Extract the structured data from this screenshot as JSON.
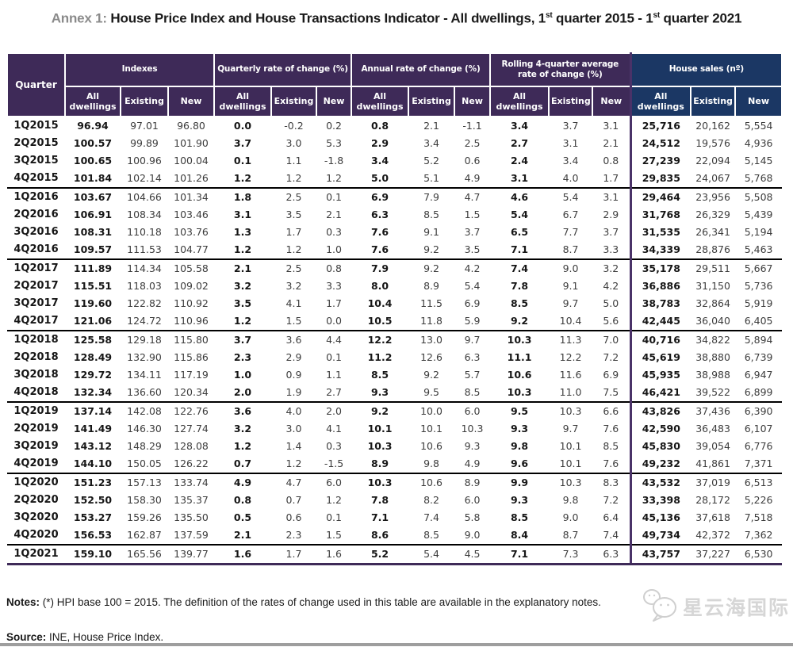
{
  "title": {
    "prefix": "Annex 1:",
    "part1": " House Price Index and House Transactions Indicator - All dwellings, 1",
    "sup1": "st",
    "part2": " quarter 2015 - 1",
    "sup2": "st",
    "part3": " quarter 2021"
  },
  "colors": {
    "header_purple": "#3e2a58",
    "header_navy": "#1b3764",
    "divider_purple": "#4a3268",
    "year_separator": "#000000",
    "table_bottom_border": "#3e2a58",
    "watermark_gray": "#d6d6d6",
    "bottom_rule_gray": "#9e9e9e"
  },
  "table": {
    "quarter_header": "Quarter",
    "groups": [
      {
        "label": "Indexes",
        "theme": "purple"
      },
      {
        "label": "Quarterly rate of change (%)",
        "theme": "purple"
      },
      {
        "label": "Annual rate of change (%)",
        "theme": "purple"
      },
      {
        "label": "Rolling 4-quarter average rate of change (%)",
        "theme": "purple"
      },
      {
        "label": "House sales (nº)",
        "theme": "navy"
      }
    ],
    "subheaders": [
      "All dwellings",
      "Existing",
      "New"
    ],
    "rows": [
      {
        "quarter": "1Q2015",
        "values": [
          "96.94",
          "97.01",
          "96.80",
          "0.0",
          "-0.2",
          "0.2",
          "0.8",
          "2.1",
          "-1.1",
          "3.4",
          "3.7",
          "3.1",
          "25,716",
          "20,162",
          "5,554"
        ]
      },
      {
        "quarter": "2Q2015",
        "values": [
          "100.57",
          "99.89",
          "101.90",
          "3.7",
          "3.0",
          "5.3",
          "2.9",
          "3.4",
          "2.5",
          "2.7",
          "3.1",
          "2.1",
          "24,512",
          "19,576",
          "4,936"
        ]
      },
      {
        "quarter": "3Q2015",
        "values": [
          "100.65",
          "100.96",
          "100.04",
          "0.1",
          "1.1",
          "-1.8",
          "3.4",
          "5.2",
          "0.6",
          "2.4",
          "3.4",
          "0.8",
          "27,239",
          "22,094",
          "5,145"
        ]
      },
      {
        "quarter": "4Q2015",
        "values": [
          "101.84",
          "102.14",
          "101.26",
          "1.2",
          "1.2",
          "1.2",
          "5.0",
          "5.1",
          "4.9",
          "3.1",
          "4.0",
          "1.7",
          "29,835",
          "24,067",
          "5,768"
        ]
      },
      {
        "quarter": "1Q2016",
        "values": [
          "103.67",
          "104.66",
          "101.34",
          "1.8",
          "2.5",
          "0.1",
          "6.9",
          "7.9",
          "4.7",
          "4.6",
          "5.4",
          "3.1",
          "29,464",
          "23,956",
          "5,508"
        ]
      },
      {
        "quarter": "2Q2016",
        "values": [
          "106.91",
          "108.34",
          "103.46",
          "3.1",
          "3.5",
          "2.1",
          "6.3",
          "8.5",
          "1.5",
          "5.4",
          "6.7",
          "2.9",
          "31,768",
          "26,329",
          "5,439"
        ]
      },
      {
        "quarter": "3Q2016",
        "values": [
          "108.31",
          "110.18",
          "103.76",
          "1.3",
          "1.7",
          "0.3",
          "7.6",
          "9.1",
          "3.7",
          "6.5",
          "7.7",
          "3.7",
          "31,535",
          "26,341",
          "5,194"
        ]
      },
      {
        "quarter": "4Q2016",
        "values": [
          "109.57",
          "111.53",
          "104.77",
          "1.2",
          "1.2",
          "1.0",
          "7.6",
          "9.2",
          "3.5",
          "7.1",
          "8.7",
          "3.3",
          "34,339",
          "28,876",
          "5,463"
        ]
      },
      {
        "quarter": "1Q2017",
        "values": [
          "111.89",
          "114.34",
          "105.58",
          "2.1",
          "2.5",
          "0.8",
          "7.9",
          "9.2",
          "4.2",
          "7.4",
          "9.0",
          "3.2",
          "35,178",
          "29,511",
          "5,667"
        ]
      },
      {
        "quarter": "2Q2017",
        "values": [
          "115.51",
          "118.03",
          "109.02",
          "3.2",
          "3.2",
          "3.3",
          "8.0",
          "8.9",
          "5.4",
          "7.8",
          "9.1",
          "4.2",
          "36,886",
          "31,150",
          "5,736"
        ]
      },
      {
        "quarter": "3Q2017",
        "values": [
          "119.60",
          "122.82",
          "110.92",
          "3.5",
          "4.1",
          "1.7",
          "10.4",
          "11.5",
          "6.9",
          "8.5",
          "9.7",
          "5.0",
          "38,783",
          "32,864",
          "5,919"
        ]
      },
      {
        "quarter": "4Q2017",
        "values": [
          "121.06",
          "124.72",
          "110.96",
          "1.2",
          "1.5",
          "0.0",
          "10.5",
          "11.8",
          "5.9",
          "9.2",
          "10.4",
          "5.6",
          "42,445",
          "36,040",
          "6,405"
        ]
      },
      {
        "quarter": "1Q2018",
        "values": [
          "125.58",
          "129.18",
          "115.80",
          "3.7",
          "3.6",
          "4.4",
          "12.2",
          "13.0",
          "9.7",
          "10.3",
          "11.3",
          "7.0",
          "40,716",
          "34,822",
          "5,894"
        ]
      },
      {
        "quarter": "2Q2018",
        "values": [
          "128.49",
          "132.90",
          "115.86",
          "2.3",
          "2.9",
          "0.1",
          "11.2",
          "12.6",
          "6.3",
          "11.1",
          "12.2",
          "7.2",
          "45,619",
          "38,880",
          "6,739"
        ]
      },
      {
        "quarter": "3Q2018",
        "values": [
          "129.72",
          "134.11",
          "117.19",
          "1.0",
          "0.9",
          "1.1",
          "8.5",
          "9.2",
          "5.7",
          "10.6",
          "11.6",
          "6.9",
          "45,935",
          "38,988",
          "6,947"
        ]
      },
      {
        "quarter": "4Q2018",
        "values": [
          "132.34",
          "136.60",
          "120.34",
          "2.0",
          "1.9",
          "2.7",
          "9.3",
          "9.5",
          "8.5",
          "10.3",
          "11.0",
          "7.5",
          "46,421",
          "39,522",
          "6,899"
        ]
      },
      {
        "quarter": "1Q2019",
        "values": [
          "137.14",
          "142.08",
          "122.76",
          "3.6",
          "4.0",
          "2.0",
          "9.2",
          "10.0",
          "6.0",
          "9.5",
          "10.3",
          "6.6",
          "43,826",
          "37,436",
          "6,390"
        ]
      },
      {
        "quarter": "2Q2019",
        "values": [
          "141.49",
          "146.30",
          "127.74",
          "3.2",
          "3.0",
          "4.1",
          "10.1",
          "10.1",
          "10.3",
          "9.3",
          "9.7",
          "7.6",
          "42,590",
          "36,483",
          "6,107"
        ]
      },
      {
        "quarter": "3Q2019",
        "values": [
          "143.12",
          "148.29",
          "128.08",
          "1.2",
          "1.4",
          "0.3",
          "10.3",
          "10.6",
          "9.3",
          "9.8",
          "10.1",
          "8.5",
          "45,830",
          "39,054",
          "6,776"
        ]
      },
      {
        "quarter": "4Q2019",
        "values": [
          "144.10",
          "150.05",
          "126.22",
          "0.7",
          "1.2",
          "-1.5",
          "8.9",
          "9.8",
          "4.9",
          "9.6",
          "10.1",
          "7.6",
          "49,232",
          "41,861",
          "7,371"
        ]
      },
      {
        "quarter": "1Q2020",
        "values": [
          "151.23",
          "157.13",
          "133.74",
          "4.9",
          "4.7",
          "6.0",
          "10.3",
          "10.6",
          "8.9",
          "9.9",
          "10.3",
          "8.3",
          "43,532",
          "37,019",
          "6,513"
        ]
      },
      {
        "quarter": "2Q2020",
        "values": [
          "152.50",
          "158.30",
          "135.37",
          "0.8",
          "0.7",
          "1.2",
          "7.8",
          "8.2",
          "6.0",
          "9.3",
          "9.8",
          "7.2",
          "33,398",
          "28,172",
          "5,226"
        ]
      },
      {
        "quarter": "3Q2020",
        "values": [
          "153.27",
          "159.26",
          "135.50",
          "0.5",
          "0.6",
          "0.1",
          "7.1",
          "7.4",
          "5.8",
          "8.5",
          "9.0",
          "6.4",
          "45,136",
          "37,618",
          "7,518"
        ]
      },
      {
        "quarter": "4Q2020",
        "values": [
          "156.53",
          "162.87",
          "137.59",
          "2.1",
          "2.3",
          "1.5",
          "8.6",
          "8.5",
          "9.0",
          "8.4",
          "8.7",
          "7.4",
          "49,734",
          "42,372",
          "7,362"
        ]
      },
      {
        "quarter": "1Q2021",
        "values": [
          "159.10",
          "165.56",
          "139.77",
          "1.6",
          "1.7",
          "1.6",
          "5.2",
          "5.4",
          "4.5",
          "7.1",
          "7.3",
          "6.3",
          "43,757",
          "37,227",
          "6,530"
        ]
      }
    ]
  },
  "footer": {
    "notes_label": "Notes:",
    "notes_text": " (*) HPI base 100 = 2015. The definition of the rates of change used in this table are available in the explanatory notes.",
    "source_label": "Source:",
    "source_text": " INE, House Price Index."
  },
  "watermark": {
    "text": "星云海国际"
  }
}
